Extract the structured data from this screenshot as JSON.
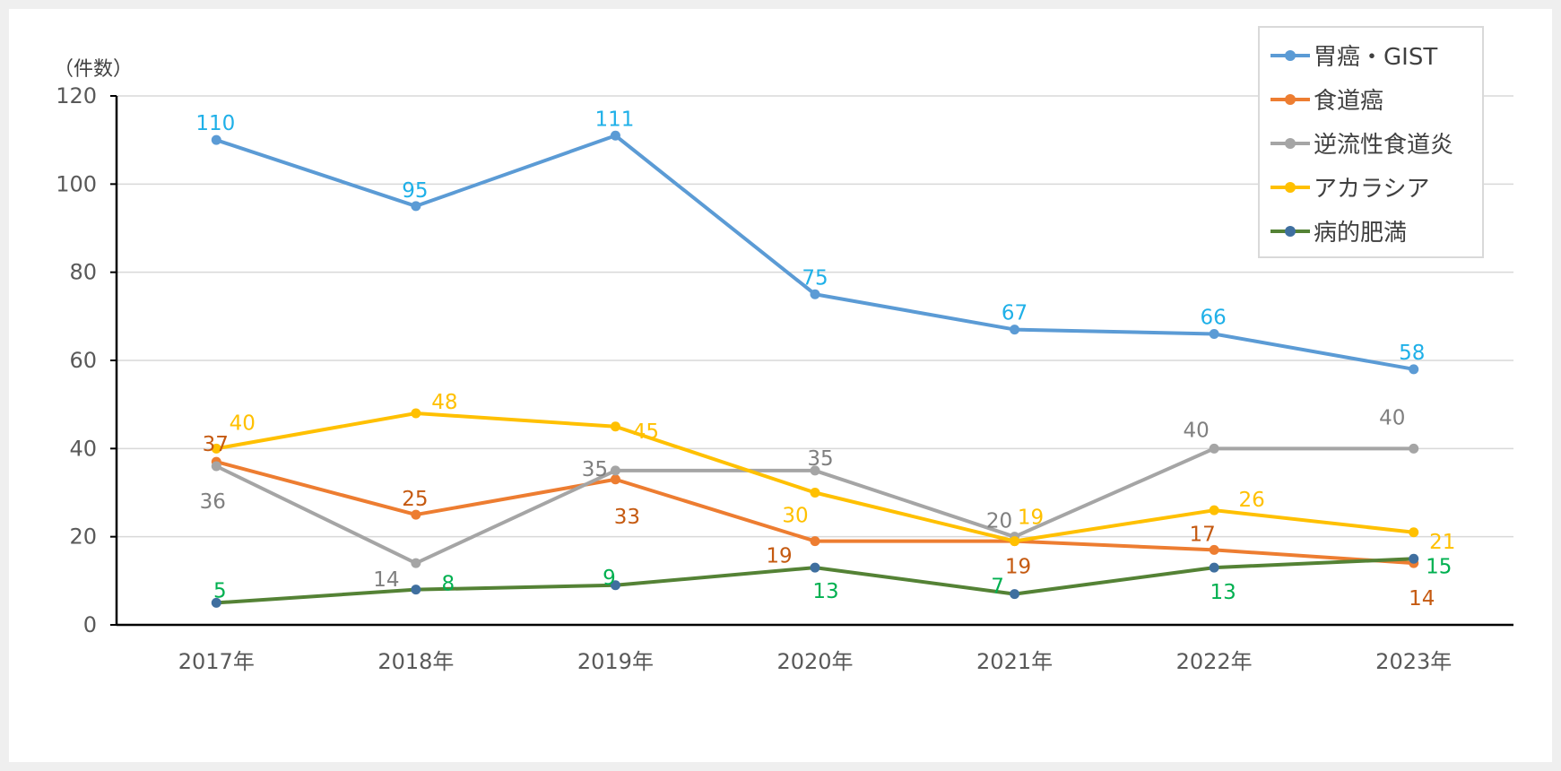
{
  "chart_data": {
    "type": "line",
    "y_unit_label": "（件数）",
    "categories": [
      "2017年",
      "2018年",
      "2019年",
      "2020年",
      "2021年",
      "2022年",
      "2023年"
    ],
    "ylim": [
      0,
      120
    ],
    "yticks": [
      0,
      20,
      40,
      60,
      80,
      100,
      120
    ],
    "grid": true,
    "legend_position": "top-right",
    "series": [
      {
        "name": "胃癌・GIST",
        "color": "#5b9bd5",
        "label_color": "#1fb0e8",
        "values": [
          110,
          95,
          111,
          75,
          67,
          66,
          58
        ]
      },
      {
        "name": "食道癌",
        "color": "#ed7d31",
        "label_color": "#c55a11",
        "values": [
          37,
          25,
          33,
          19,
          19,
          17,
          14
        ]
      },
      {
        "name": "逆流性食道炎",
        "color": "#a5a5a5",
        "label_color": "#7f7f7f",
        "values": [
          36,
          14,
          35,
          35,
          20,
          40,
          40
        ]
      },
      {
        "name": "アカラシア",
        "color": "#ffc000",
        "label_color": "#ffc000",
        "values": [
          40,
          48,
          45,
          30,
          19,
          26,
          21
        ]
      },
      {
        "name": "病的肥満",
        "color": "#548235",
        "label_color": "#00b050",
        "marker_color": "#3f6f9f",
        "values": [
          5,
          8,
          9,
          13,
          7,
          13,
          15
        ]
      }
    ]
  }
}
